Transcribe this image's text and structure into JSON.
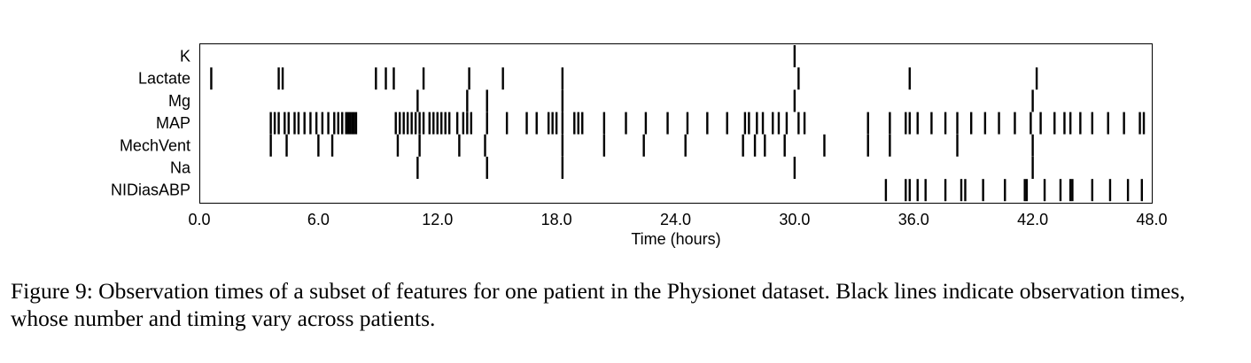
{
  "chart_data": {
    "type": "event_raster",
    "xlabel": "Time (hours)",
    "ylabel": "",
    "xlim": [
      0,
      48
    ],
    "xticks": [
      "0.0",
      "6.0",
      "12.0",
      "18.0",
      "24.0",
      "30.0",
      "36.0",
      "42.0",
      "48.0"
    ],
    "grid": false,
    "mark_color": "#000000",
    "series": [
      {
        "name": "K",
        "times": [
          30.0
        ]
      },
      {
        "name": "Lactate",
        "times": [
          0.6,
          4.0,
          4.2,
          8.9,
          9.4,
          9.8,
          11.3,
          13.6,
          15.3,
          18.3,
          30.2,
          35.8,
          42.2
        ]
      },
      {
        "name": "Mg",
        "times": [
          11.0,
          13.5,
          14.5,
          18.3,
          30.0,
          42.0
        ]
      },
      {
        "name": "MAP",
        "times": [
          3.6,
          3.8,
          4.0,
          4.3,
          4.5,
          4.8,
          5.0,
          5.3,
          5.6,
          5.9,
          6.2,
          6.5,
          6.8,
          7.0,
          7.2,
          7.4,
          7.5,
          7.6,
          7.7,
          7.8,
          7.9,
          9.9,
          10.1,
          10.3,
          10.5,
          10.7,
          10.9,
          11.1,
          11.3,
          11.6,
          11.8,
          12.0,
          12.2,
          12.4,
          12.6,
          13.0,
          13.3,
          13.5,
          13.7,
          14.5,
          15.5,
          16.5,
          17.0,
          17.6,
          17.8,
          18.0,
          18.3,
          18.9,
          19.1,
          19.3,
          20.4,
          21.5,
          22.5,
          23.6,
          24.6,
          25.6,
          26.6,
          27.5,
          27.7,
          28.1,
          28.4,
          28.9,
          29.2,
          29.6,
          30.2,
          30.5,
          33.7,
          34.8,
          35.6,
          35.8,
          36.2,
          36.9,
          37.6,
          38.2,
          38.9,
          39.6,
          40.3,
          41.1,
          41.9,
          42.4,
          43.1,
          43.6,
          43.9,
          44.4,
          45.0,
          45.8,
          46.6,
          47.4,
          47.6
        ]
      },
      {
        "name": "MechVent",
        "times": [
          3.6,
          4.4,
          6.0,
          6.7,
          10.0,
          11.1,
          13.1,
          14.4,
          18.3,
          20.4,
          22.4,
          24.5,
          27.4,
          28.0,
          28.5,
          29.5,
          31.5,
          33.7,
          34.8,
          38.2,
          42.0
        ]
      },
      {
        "name": "Na",
        "times": [
          11.0,
          14.5,
          18.3,
          30.0,
          42.0
        ]
      },
      {
        "name": "NIDiasABP",
        "times": [
          34.6,
          35.6,
          35.8,
          36.2,
          36.6,
          37.6,
          38.4,
          38.6,
          39.5,
          40.6,
          41.6,
          41.7,
          42.6,
          43.4,
          43.9,
          44.0,
          45.0,
          45.9,
          46.8,
          47.5
        ]
      }
    ]
  },
  "caption": "Figure 9: Observation times of a subset of features for one patient in the Physionet dataset. Black lines indicate observation times, whose number and timing vary across patients."
}
